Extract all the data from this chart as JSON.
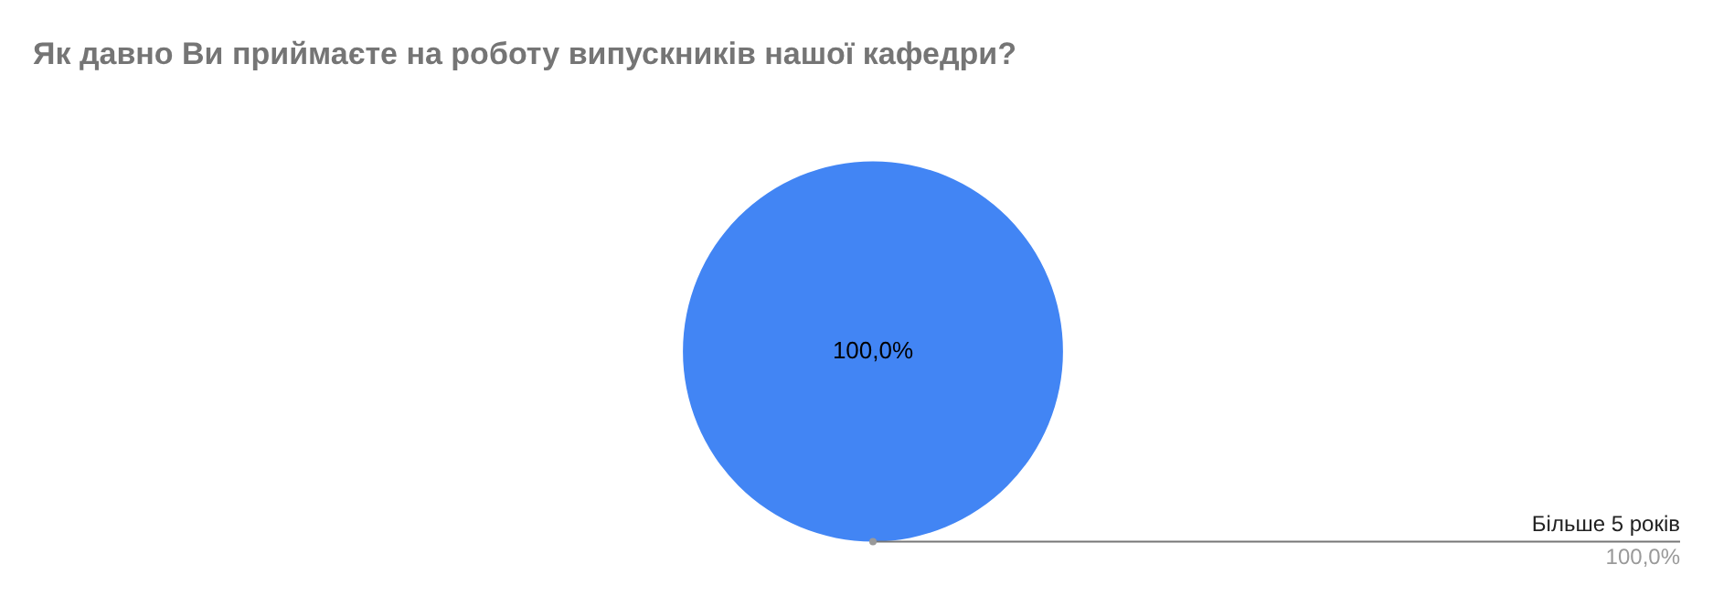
{
  "chart_data": {
    "type": "pie",
    "title": "Як давно Ви приймаєте на роботу випускників нашої кафедри?",
    "categories": [
      "Більше 5 років"
    ],
    "values": [
      100
    ],
    "colors": [
      "#4285f4"
    ],
    "value_labels": [
      "100,0%"
    ],
    "legend": false
  }
}
